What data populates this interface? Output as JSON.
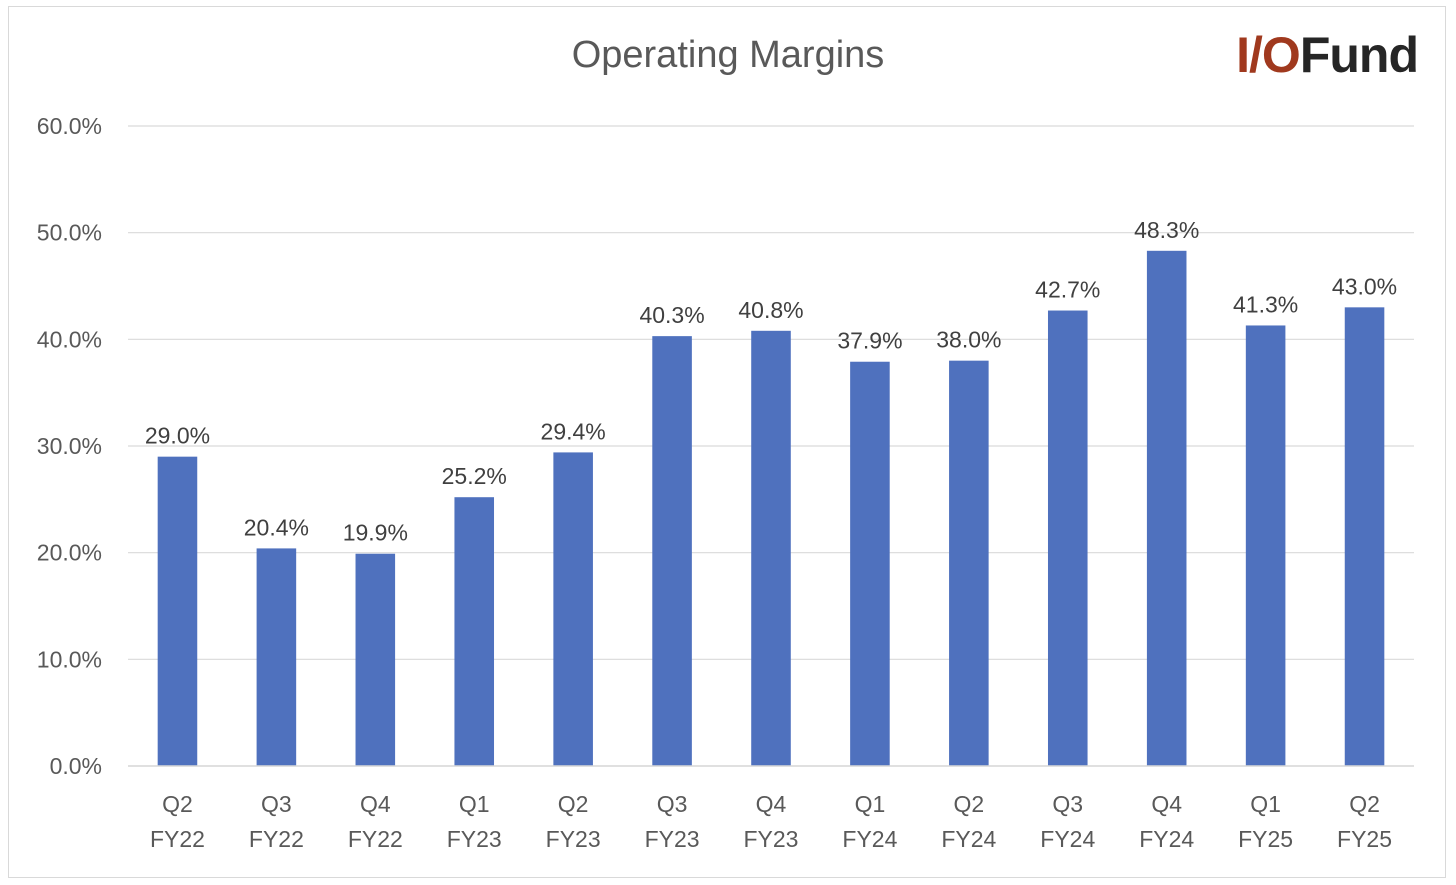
{
  "chart_data": {
    "type": "bar",
    "title": "Operating Margins",
    "xlabel": "",
    "ylabel": "",
    "ylim": [
      0,
      60
    ],
    "yticks": [
      "0.0%",
      "10.0%",
      "20.0%",
      "30.0%",
      "40.0%",
      "50.0%",
      "60.0%"
    ],
    "grid": true,
    "categories": [
      [
        "Q2",
        "FY22"
      ],
      [
        "Q3",
        "FY22"
      ],
      [
        "Q4",
        "FY22"
      ],
      [
        "Q1",
        "FY23"
      ],
      [
        "Q2",
        "FY23"
      ],
      [
        "Q3",
        "FY23"
      ],
      [
        "Q4",
        "FY23"
      ],
      [
        "Q1",
        "FY24"
      ],
      [
        "Q2",
        "FY24"
      ],
      [
        "Q3",
        "FY24"
      ],
      [
        "Q4",
        "FY24"
      ],
      [
        "Q1",
        "FY25"
      ],
      [
        "Q2",
        "FY25"
      ]
    ],
    "values": [
      29.0,
      20.4,
      19.9,
      25.2,
      29.4,
      40.3,
      40.8,
      37.9,
      38.0,
      42.7,
      48.3,
      41.3,
      43.0
    ],
    "data_labels": [
      "29.0%",
      "20.4%",
      "19.9%",
      "25.2%",
      "29.4%",
      "40.3%",
      "40.8%",
      "37.9%",
      "38.0%",
      "42.7%",
      "48.3%",
      "41.3%",
      "43.0%"
    ],
    "bar_color": "#4f71be",
    "gridline_color": "#d9d9d9"
  },
  "logo": {
    "part1": "I/O",
    "part2": "Fund"
  }
}
